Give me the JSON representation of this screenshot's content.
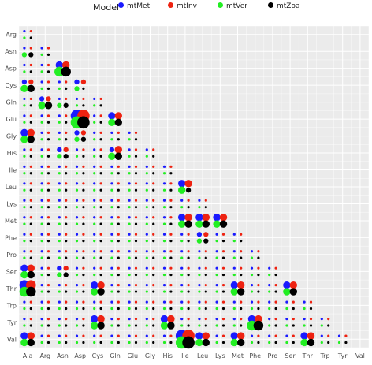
{
  "legend": {
    "title": "Model",
    "placement": "top"
  },
  "chart_data": {
    "type": "scatter",
    "grid": true,
    "x_labels": [
      "Ala",
      "Arg",
      "Asn",
      "Asp",
      "Cys",
      "Gln",
      "Glu",
      "Gly",
      "His",
      "Ile",
      "Leu",
      "Lys",
      "Met",
      "Phe",
      "Pro",
      "Ser",
      "Thr",
      "Trp",
      "Tyr",
      "Val"
    ],
    "y_labels": [
      "Arg",
      "Asn",
      "Asp",
      "Cys",
      "Gln",
      "Glu",
      "Gly",
      "His",
      "Ile",
      "Leu",
      "Lys",
      "Met",
      "Phe",
      "Pro",
      "Ser",
      "Thr",
      "Trp",
      "Tyr",
      "Val"
    ],
    "size_scale_note": "each (row, column) pair below the diagonal carries four points, one per model; values encode relative exchange rate (1 = smallest dot)",
    "series": [
      {
        "name": "mtMet",
        "color": "#1a1aff"
      },
      {
        "name": "mtInv",
        "color": "#ee2211"
      },
      {
        "name": "mtVer",
        "color": "#22ee22"
      },
      {
        "name": "mtZoa",
        "color": "#000000"
      }
    ],
    "highlights": [
      {
        "row": "Asn",
        "col": "Ala",
        "values": [
          1,
          1,
          2,
          2
        ]
      },
      {
        "row": "Asp",
        "col": "Asn",
        "values": [
          3,
          3,
          4,
          4
        ]
      },
      {
        "row": "Cys",
        "col": "Ala",
        "values": [
          2,
          2,
          3,
          3
        ]
      },
      {
        "row": "Cys",
        "col": "Asp",
        "values": [
          2,
          2,
          2,
          1
        ]
      },
      {
        "row": "Gln",
        "col": "Arg",
        "values": [
          2,
          2,
          3,
          3
        ]
      },
      {
        "row": "Gln",
        "col": "Asn",
        "values": [
          1,
          1,
          2,
          2
        ]
      },
      {
        "row": "Glu",
        "col": "Asp",
        "values": [
          5,
          5,
          5,
          5
        ]
      },
      {
        "row": "Glu",
        "col": "Gln",
        "values": [
          3,
          3,
          3,
          3
        ]
      },
      {
        "row": "Gly",
        "col": "Ala",
        "values": [
          3,
          3,
          3,
          3
        ]
      },
      {
        "row": "Gly",
        "col": "Asp",
        "values": [
          2,
          2,
          2,
          2
        ]
      },
      {
        "row": "His",
        "col": "Gln",
        "values": [
          2,
          3,
          3,
          3
        ]
      },
      {
        "row": "His",
        "col": "Asn",
        "values": [
          2,
          2,
          2,
          2
        ]
      },
      {
        "row": "Leu",
        "col": "Ile",
        "values": [
          3,
          3,
          3,
          2
        ]
      },
      {
        "row": "Met",
        "col": "Ile",
        "values": [
          3,
          3,
          3,
          3
        ]
      },
      {
        "row": "Met",
        "col": "Leu",
        "values": [
          3,
          3,
          3,
          3
        ]
      },
      {
        "row": "Met",
        "col": "Lys",
        "values": [
          3,
          3,
          3,
          3
        ]
      },
      {
        "row": "Phe",
        "col": "Leu",
        "values": [
          2,
          2,
          2,
          2
        ]
      },
      {
        "row": "Ser",
        "col": "Ala",
        "values": [
          3,
          3,
          3,
          3
        ]
      },
      {
        "row": "Ser",
        "col": "Asn",
        "values": [
          2,
          2,
          2,
          2
        ]
      },
      {
        "row": "Thr",
        "col": "Ala",
        "values": [
          4,
          4,
          4,
          4
        ]
      },
      {
        "row": "Thr",
        "col": "Cys",
        "values": [
          3,
          3,
          3,
          3
        ]
      },
      {
        "row": "Thr",
        "col": "Ser",
        "values": [
          3,
          3,
          3,
          3
        ]
      },
      {
        "row": "Thr",
        "col": "Met",
        "values": [
          3,
          3,
          3,
          3
        ]
      },
      {
        "row": "Tyr",
        "col": "Phe",
        "values": [
          3,
          3,
          4,
          4
        ]
      },
      {
        "row": "Tyr",
        "col": "His",
        "values": [
          3,
          3,
          3,
          3
        ]
      },
      {
        "row": "Tyr",
        "col": "Cys",
        "values": [
          3,
          3,
          3,
          3
        ]
      },
      {
        "row": "Val",
        "col": "Ile",
        "values": [
          5,
          5,
          5,
          5
        ]
      },
      {
        "row": "Val",
        "col": "Ala",
        "values": [
          3,
          3,
          3,
          3
        ]
      },
      {
        "row": "Val",
        "col": "Leu",
        "values": [
          3,
          3,
          3,
          3
        ]
      },
      {
        "row": "Val",
        "col": "Thr",
        "values": [
          3,
          3,
          3,
          3
        ]
      },
      {
        "row": "Val",
        "col": "Met",
        "values": [
          3,
          3,
          3,
          3
        ]
      }
    ]
  }
}
